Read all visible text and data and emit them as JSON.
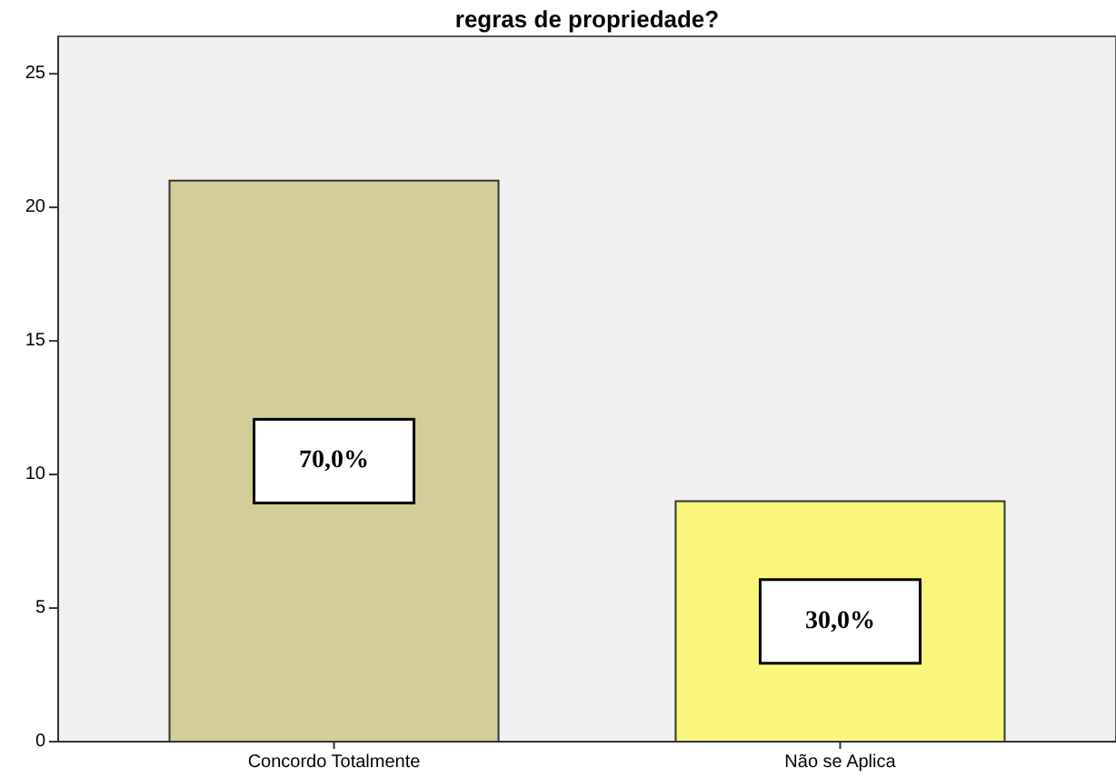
{
  "chart_data": {
    "type": "bar",
    "title": "regras de propriedade?",
    "categories": [
      "Concordo Totalmente",
      "Não se Aplica"
    ],
    "values": [
      21,
      9
    ],
    "colors": [
      "#d3cd98",
      "#faf67c"
    ],
    "annotations": [
      "70,0%",
      "30,0%"
    ],
    "ylim": [
      0,
      26.4
    ],
    "yticks": [
      0,
      5,
      10,
      15,
      20,
      25
    ],
    "grid": false
  }
}
